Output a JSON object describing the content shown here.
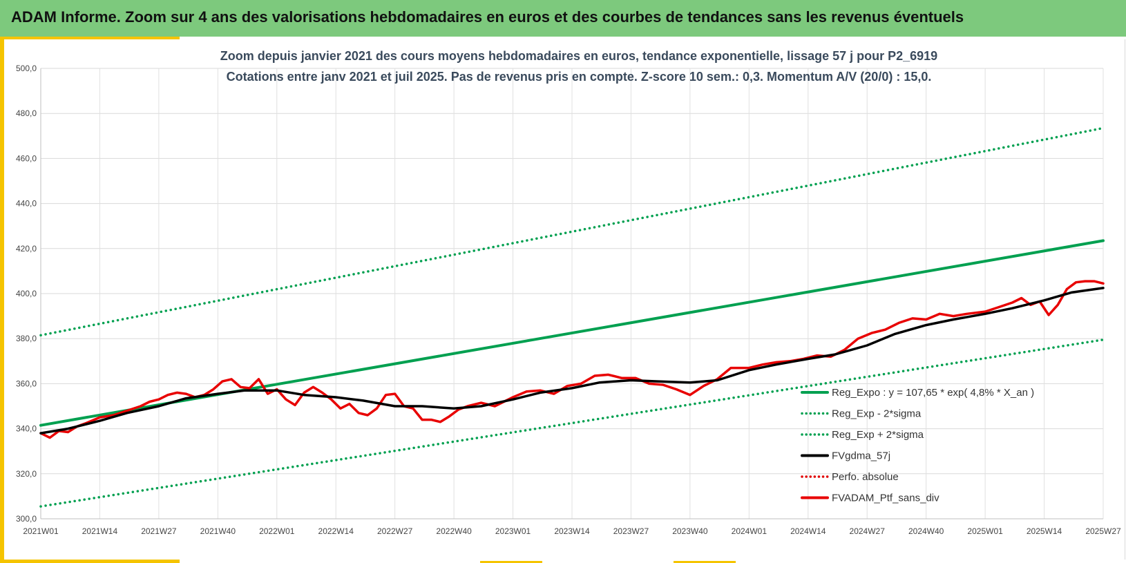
{
  "header": {
    "title": "ADAM Informe. Zoom sur 4 ans des valorisations hebdomadaires en euros et des courbes de tendances sans les revenus éventuels",
    "background": "#7dc97d",
    "accent": "#f5c400"
  },
  "chart_data": {
    "type": "line",
    "subtitle_lines": [
      "Zoom depuis janvier 2021 des cours moyens hebdomadaires  en euros, tendance exponentielle, lissage 57 j pour P2_6919",
      "Cotations entre janv 2021 et juil 2025. Pas de revenus pris en compte. Z-score 10 sem.: 0,3. Momentum A/V (20/0) : 15,0."
    ],
    "ylim": [
      300,
      500
    ],
    "yticks": [
      "300,0",
      "320,0",
      "340,0",
      "360,0",
      "380,0",
      "400,0",
      "420,0",
      "440,0",
      "460,0",
      "480,0",
      "500,0"
    ],
    "xticks": [
      "2021W01",
      "2021W14",
      "2021W27",
      "2021W40",
      "2022W01",
      "2022W14",
      "2022W27",
      "2022W40",
      "2023W01",
      "2023W14",
      "2023W27",
      "2023W40",
      "2024W01",
      "2024W14",
      "2024W27",
      "2024W40",
      "2025W01",
      "2025W14",
      "2025W27"
    ],
    "grid": true,
    "legend_position": "bottom-right",
    "series": [
      {
        "name": "Reg_Expo : y = 107,65 * exp( 4,8% *  X_an )",
        "color": "#00a050",
        "style": "solid",
        "x": [
          "2021W01",
          "2025W27"
        ],
        "y": [
          341.5,
          423.5
        ]
      },
      {
        "name": "Reg_Exp - 2*sigma",
        "color": "#00a050",
        "style": "dotted",
        "x": [
          "2021W01",
          "2025W27"
        ],
        "y": [
          305.5,
          379.5
        ]
      },
      {
        "name": "Reg_Exp + 2*sigma",
        "color": "#00a050",
        "style": "dotted",
        "x": [
          "2021W01",
          "2025W27"
        ],
        "y": [
          381.5,
          473.5
        ]
      },
      {
        "name": "FVgdma_57j",
        "color": "#000000",
        "style": "solid",
        "x": [
          "2021W01",
          "2021W07",
          "2021W14",
          "2021W20",
          "2021W27",
          "2021W33",
          "2021W40",
          "2021W46",
          "2022W01",
          "2022W07",
          "2022W14",
          "2022W20",
          "2022W27",
          "2022W33",
          "2022W40",
          "2022W46",
          "2023W01",
          "2023W07",
          "2023W14",
          "2023W20",
          "2023W27",
          "2023W33",
          "2023W40",
          "2023W46",
          "2024W01",
          "2024W07",
          "2024W14",
          "2024W20",
          "2024W27",
          "2024W33",
          "2024W40",
          "2024W46",
          "2025W01",
          "2025W07",
          "2025W14",
          "2025W20",
          "2025W27"
        ],
        "y": [
          338.0,
          340.0,
          343.5,
          347.0,
          350.0,
          353.5,
          355.5,
          357.0,
          357.0,
          355.0,
          354.0,
          352.5,
          350.0,
          350.0,
          349.0,
          350.0,
          353.0,
          356.0,
          358.0,
          360.5,
          361.5,
          361.0,
          360.5,
          361.5,
          366.0,
          368.5,
          371.0,
          373.0,
          377.0,
          382.0,
          386.0,
          388.5,
          391.0,
          393.5,
          397.0,
          400.5,
          402.5
        ]
      },
      {
        "name": "Perfo. absolue",
        "color": "#e00000",
        "style": "dotted",
        "x": [],
        "y": []
      },
      {
        "name": "FVADAM_Ptf_sans_div",
        "color": "#e80000",
        "style": "solid",
        "x": [
          "2021W01",
          "2021W03",
          "2021W05",
          "2021W07",
          "2021W09",
          "2021W11",
          "2021W14",
          "2021W17",
          "2021W20",
          "2021W23",
          "2021W25",
          "2021W27",
          "2021W29",
          "2021W31",
          "2021W33",
          "2021W35",
          "2021W37",
          "2021W39",
          "2021W41",
          "2021W43",
          "2021W45",
          "2021W47",
          "2021W49",
          "2021W51",
          "2022W01",
          "2022W03",
          "2022W05",
          "2022W07",
          "2022W09",
          "2022W11",
          "2022W13",
          "2022W15",
          "2022W17",
          "2022W19",
          "2022W21",
          "2022W23",
          "2022W25",
          "2022W27",
          "2022W29",
          "2022W31",
          "2022W33",
          "2022W35",
          "2022W37",
          "2022W39",
          "2022W41",
          "2022W43",
          "2022W46",
          "2022W49",
          "2023W01",
          "2023W04",
          "2023W07",
          "2023W10",
          "2023W13",
          "2023W16",
          "2023W19",
          "2023W22",
          "2023W25",
          "2023W28",
          "2023W31",
          "2023W34",
          "2023W37",
          "2023W40",
          "2023W43",
          "2023W46",
          "2023W49",
          "2024W01",
          "2024W04",
          "2024W07",
          "2024W10",
          "2024W13",
          "2024W16",
          "2024W19",
          "2024W22",
          "2024W25",
          "2024W28",
          "2024W31",
          "2024W34",
          "2024W37",
          "2024W40",
          "2024W43",
          "2024W46",
          "2024W49",
          "2025W01",
          "2025W04",
          "2025W07",
          "2025W09",
          "2025W11",
          "2025W13",
          "2025W15",
          "2025W17",
          "2025W19",
          "2025W21",
          "2025W23",
          "2025W25",
          "2025W27"
        ],
        "y": [
          338.0,
          336.0,
          339.0,
          338.5,
          341.0,
          342.5,
          345.0,
          346.0,
          348.0,
          350.0,
          352.0,
          353.0,
          355.0,
          356.0,
          355.5,
          354.0,
          355.0,
          357.5,
          361.0,
          362.0,
          358.5,
          358.0,
          362.0,
          355.5,
          357.5,
          353.0,
          350.5,
          356.0,
          358.5,
          356.0,
          353.0,
          349.0,
          351.0,
          347.0,
          346.0,
          349.0,
          355.0,
          355.5,
          350.0,
          349.0,
          344.0,
          344.0,
          343.0,
          345.5,
          348.5,
          350.0,
          351.5,
          350.0,
          354.0,
          356.5,
          357.0,
          355.5,
          359.0,
          360.0,
          363.5,
          364.0,
          362.5,
          362.5,
          360.0,
          359.5,
          357.5,
          355.0,
          359.0,
          362.0,
          367.0,
          367.0,
          368.5,
          369.5,
          370.0,
          371.0,
          372.5,
          372.0,
          375.0,
          380.0,
          382.5,
          384.0,
          387.0,
          389.0,
          388.5,
          391.0,
          390.0,
          391.0,
          392.0,
          394.0,
          396.0,
          398.0,
          395.0,
          396.5,
          390.5,
          395.0,
          402.0,
          405.0,
          405.5,
          405.5,
          404.5
        ]
      }
    ]
  }
}
